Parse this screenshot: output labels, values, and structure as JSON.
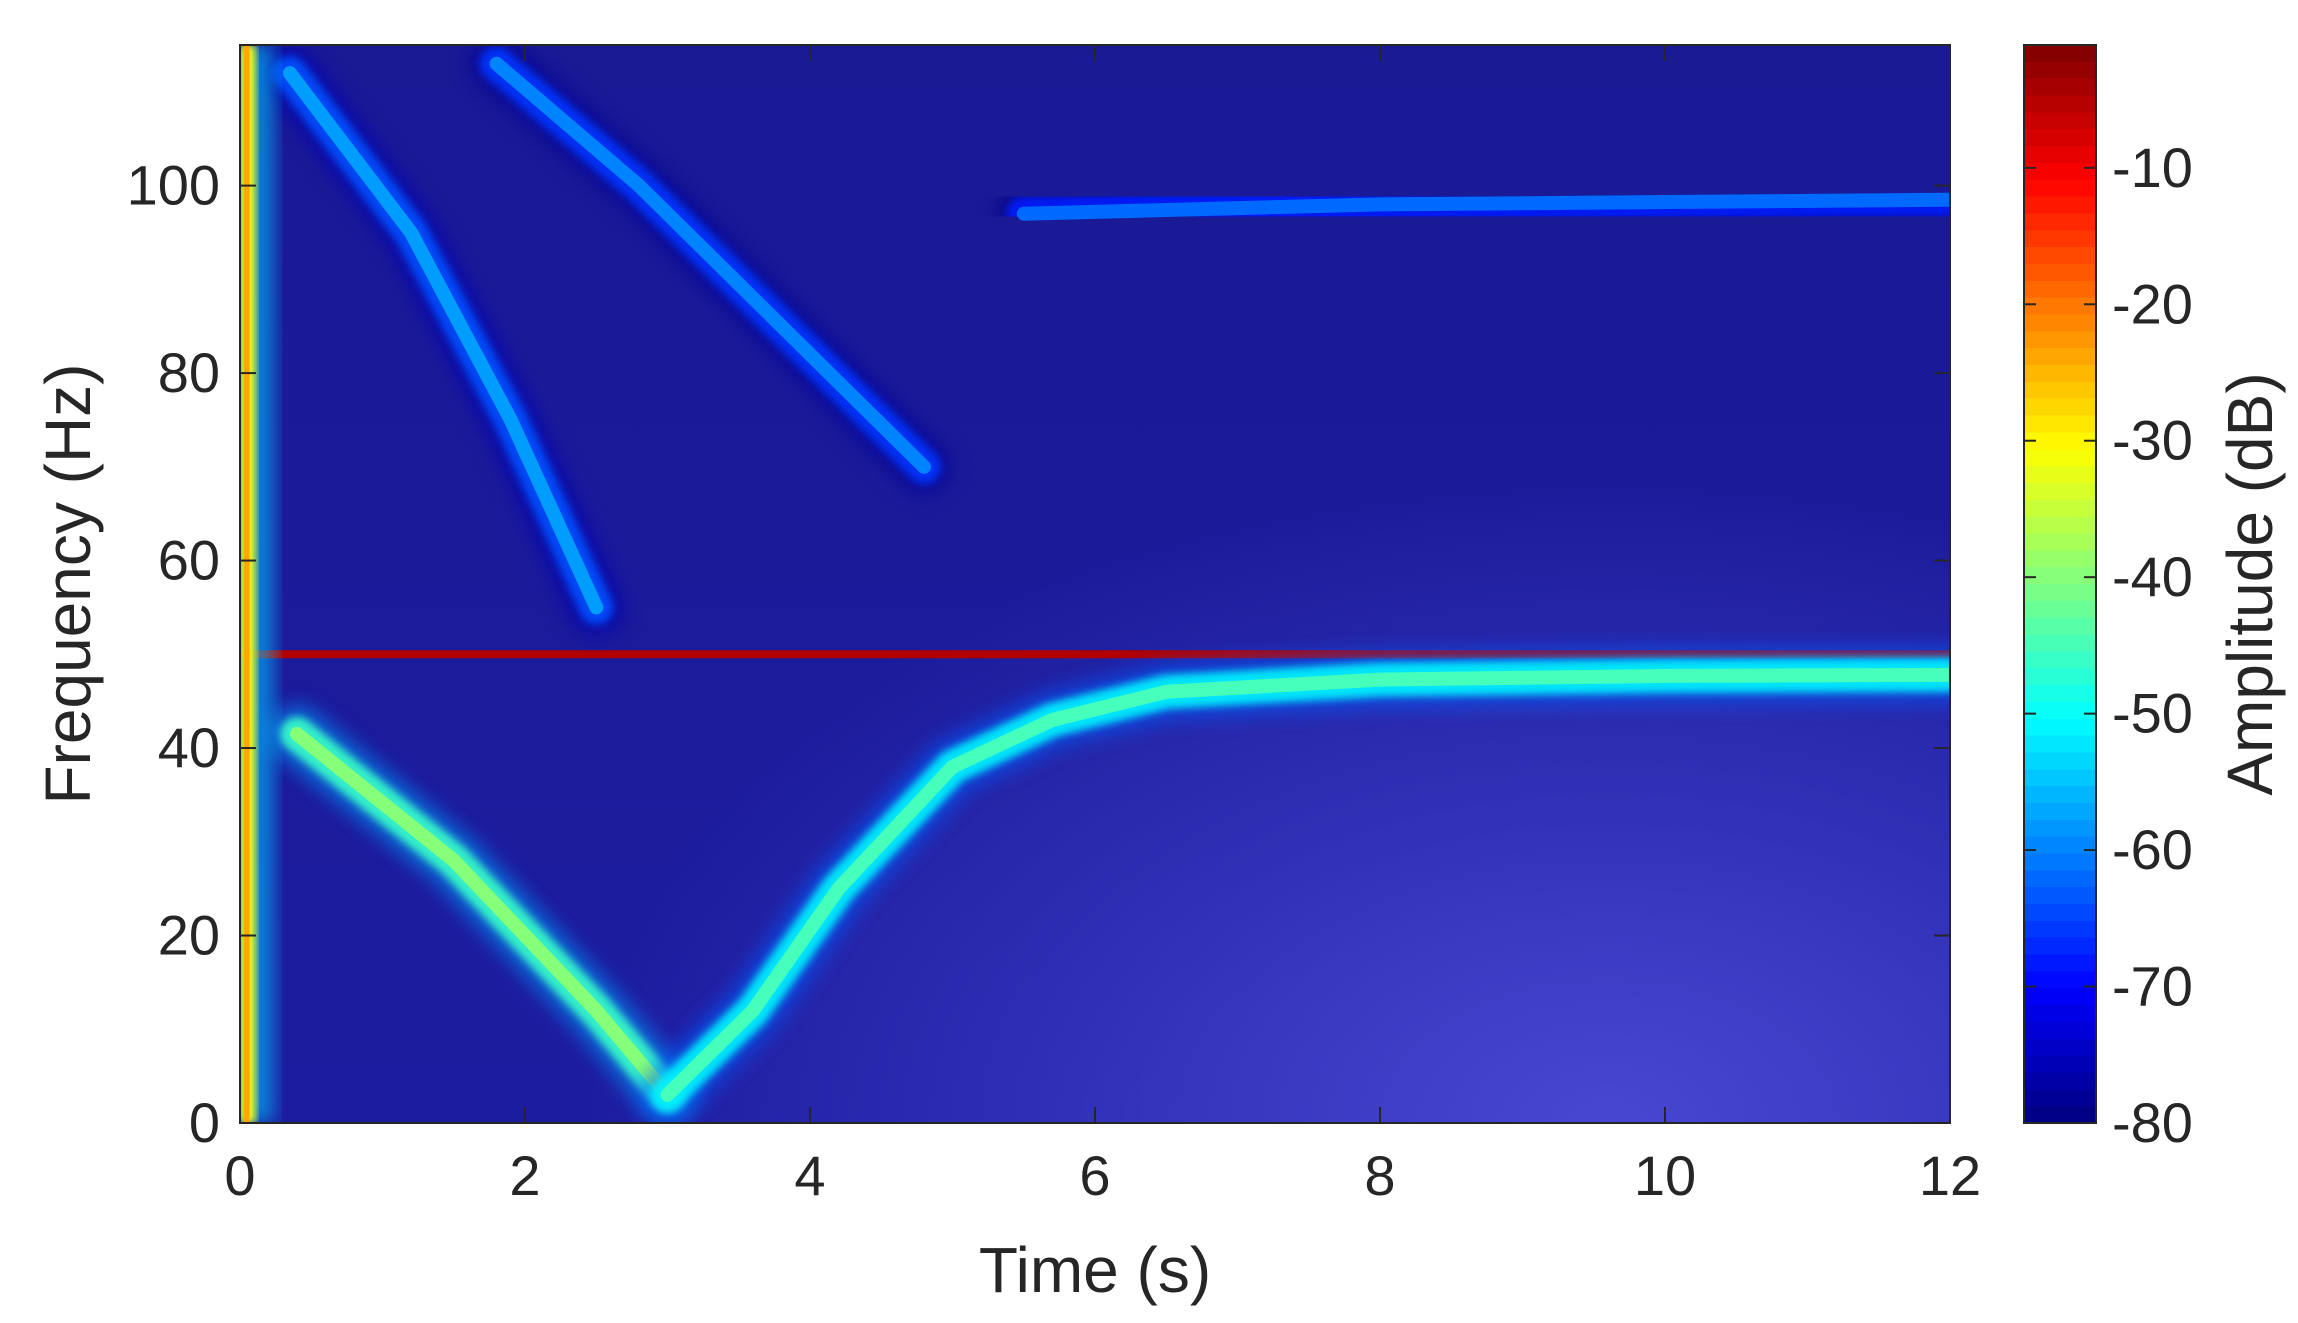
{
  "chart_data": {
    "type": "heatmap",
    "xlabel": "Time (s)",
    "ylabel": "Frequency (Hz)",
    "xlim": [
      0,
      12
    ],
    "ylim": [
      0,
      115
    ],
    "x_ticks": [
      0,
      2,
      4,
      6,
      8,
      10,
      12
    ],
    "y_ticks": [
      0,
      20,
      40,
      60,
      80,
      100
    ],
    "colorbar": {
      "label": "Amplitude (dB)",
      "range": [
        -80,
        -1
      ],
      "ticks": [
        -80,
        -70,
        -60,
        -50,
        -40,
        -30,
        -20,
        -10
      ],
      "colormap": "jet"
    },
    "features": [
      {
        "amplitude_db": -5,
        "points": [
          [
            0.02,
            50
          ],
          [
            12,
            50
          ]
        ]
      },
      {
        "amplitude_db": -40,
        "points": [
          [
            0.4,
            41.5
          ],
          [
            1.5,
            28
          ],
          [
            2.5,
            12
          ],
          [
            3.0,
            3
          ]
        ]
      },
      {
        "amplitude_db": -45,
        "points": [
          [
            3.0,
            3
          ],
          [
            3.6,
            12
          ],
          [
            4.2,
            25
          ],
          [
            5.0,
            38
          ],
          [
            5.7,
            43
          ],
          [
            6.5,
            46
          ],
          [
            8,
            47.3
          ],
          [
            10,
            47.7
          ],
          [
            12,
            47.8
          ]
        ]
      },
      {
        "amplitude_db": -58,
        "points": [
          [
            0.35,
            112
          ],
          [
            1.2,
            95
          ],
          [
            1.9,
            75
          ],
          [
            2.5,
            55
          ]
        ]
      },
      {
        "amplitude_db": -60,
        "points": [
          [
            1.8,
            113
          ],
          [
            2.8,
            100
          ],
          [
            3.8,
            85
          ],
          [
            4.8,
            70
          ]
        ]
      },
      {
        "amplitude_db": -62,
        "points": [
          [
            5.5,
            97
          ],
          [
            8,
            98
          ],
          [
            12,
            98.5
          ]
        ]
      }
    ],
    "background_db": -78,
    "grid": false,
    "legend": "colorbar-right"
  }
}
